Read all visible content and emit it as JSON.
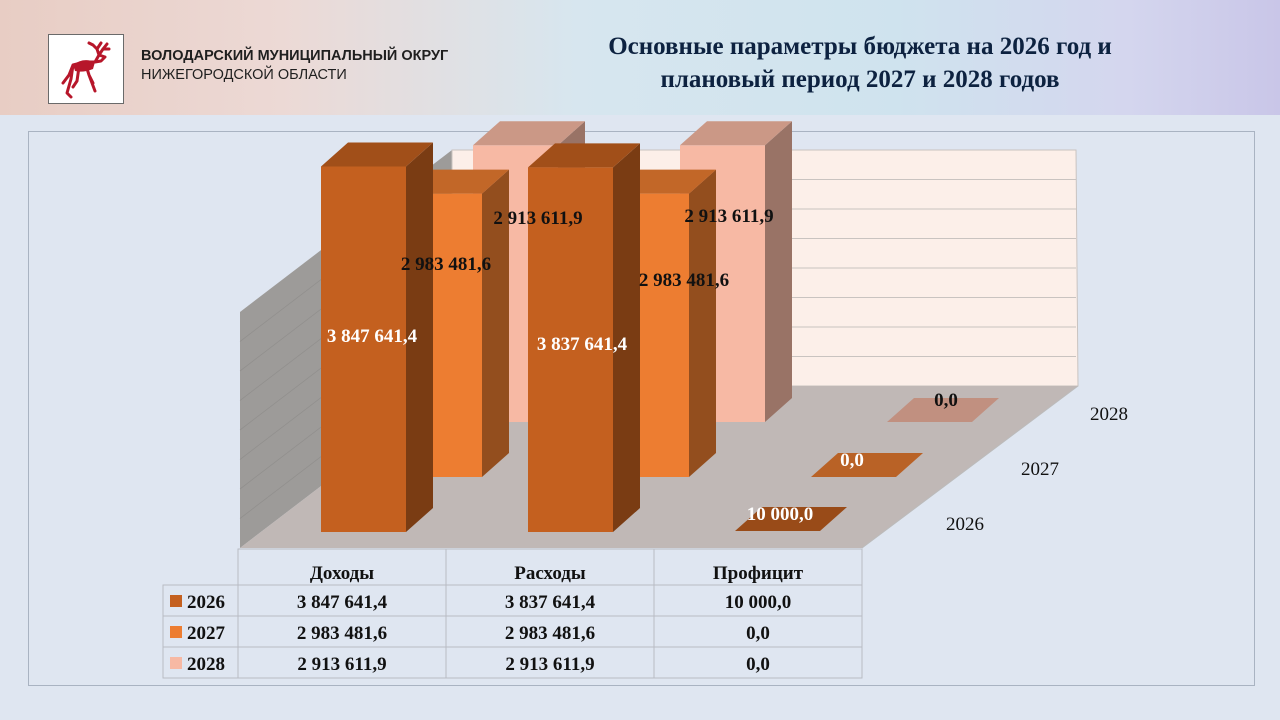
{
  "header": {
    "org_line1": "ВОЛОДАРСКИЙ МУНИЦИПАЛЬНЫЙ ОКРУГ",
    "org_line2": "НИЖЕГОРОДСКОЙ ОБЛАСТИ",
    "title_line1": "Основные параметры бюджета на 2026 год и",
    "title_line2": "плановый период 2027 и 2028 годов"
  },
  "colors": {
    "series_2026": "#c4601f",
    "series_2027": "#ed7d31",
    "series_2028": "#f7b9a4",
    "title": "#0d2240"
  },
  "chart_data": {
    "type": "bar",
    "view": "3d-clustered",
    "categories": [
      "Доходы",
      "Расходы",
      "Профицит"
    ],
    "series": [
      {
        "name": "2026",
        "values": [
          3847641.4,
          3837641.4,
          10000.0
        ],
        "labels": [
          "3 847 641,4",
          "3 837 641,4",
          "10 000,0"
        ]
      },
      {
        "name": "2027",
        "values": [
          2983481.6,
          2983481.6,
          0.0
        ],
        "labels": [
          "2 983 481,6",
          "2 983 481,6",
          "0,0"
        ]
      },
      {
        "name": "2028",
        "values": [
          2913611.9,
          2913611.9,
          0.0
        ],
        "labels": [
          "2 913 611,9",
          "2 913 611,9",
          "0,0"
        ]
      }
    ],
    "ylim": [
      0,
      4000000
    ],
    "grid": true,
    "legend": "data-table-below",
    "data_table": true
  }
}
